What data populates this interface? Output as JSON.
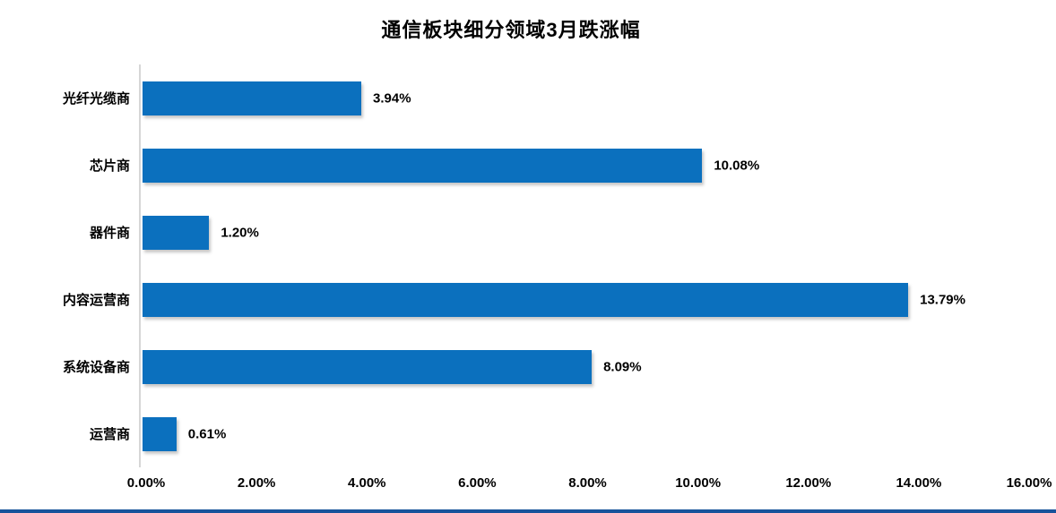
{
  "page": {
    "title": "通信板块细分领域3月跌涨幅"
  },
  "chart_data": {
    "type": "bar",
    "orientation": "horizontal",
    "title": "通信板块细分领域3月跌涨幅",
    "categories": [
      "光纤光缆商",
      "芯片商",
      "器件商",
      "内容运营商",
      "系统设备商",
      "运营商"
    ],
    "values": [
      3.94,
      10.08,
      1.2,
      13.79,
      8.09,
      0.61
    ],
    "data_labels": [
      "3.94%",
      "10.08%",
      "1.20%",
      "13.79%",
      "8.09%",
      "0.61%"
    ],
    "xlabel": "",
    "ylabel": "",
    "xlim": [
      0,
      16
    ],
    "x_ticks": [
      "0.00%",
      "2.00%",
      "4.00%",
      "6.00%",
      "8.00%",
      "10.00%",
      "12.00%",
      "14.00%",
      "16.00%"
    ],
    "x_tick_values": [
      0,
      2,
      4,
      6,
      8,
      10,
      12,
      14,
      16
    ],
    "grid": false,
    "legend": false,
    "colors": {
      "bar": "#0B70BE",
      "axis_line": "#D6D6D6",
      "text": "#000000",
      "bottom_strip": "#17539B",
      "background": "#FFFFFF"
    }
  }
}
